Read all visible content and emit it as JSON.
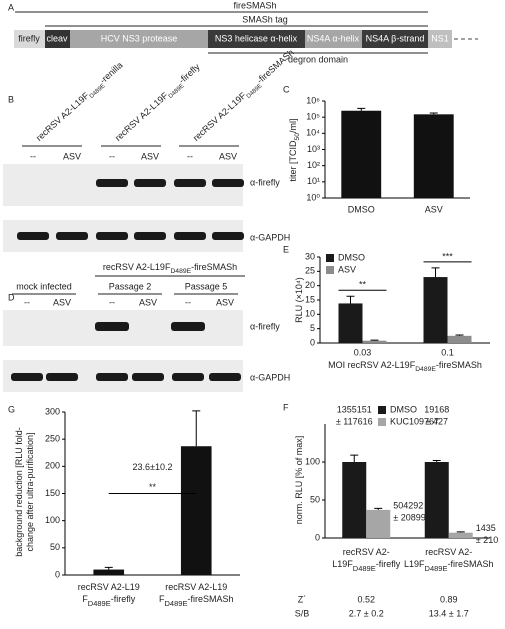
{
  "panel_labels": [
    "A",
    "B",
    "C",
    "D",
    "E",
    "F",
    "G"
  ],
  "construct": {
    "fire_label": "fireSMASh",
    "tag_label": "SMASh tag",
    "segments": [
      "firefly",
      "cleav",
      "HCV NS3 protease",
      "NS3 helicase α-helix",
      "NS4A α-helix",
      "NS4A β-strand",
      "NS1"
    ],
    "degron_label": "degron domain"
  },
  "blot_b": {
    "lanes": [
      [
        [
          "recRSV A2-L19F",
          "D489E",
          "-renilla"
        ]
      ],
      [
        [
          "recRSV A2-L19F",
          "D489E",
          "-firefly"
        ]
      ],
      [
        [
          "recRSV A2-L19F",
          "D489E",
          "-fireSMASh"
        ]
      ]
    ],
    "conditions": [
      "--",
      "ASV",
      "--",
      "ASV",
      "--",
      "ASV"
    ],
    "antibodies": [
      "α-firefly",
      "α-GAPDH"
    ]
  },
  "blot_d": {
    "group_header": [
      [
        "recRSV A2-L19F",
        "D489E",
        "-fireSMASh"
      ]
    ],
    "groups": [
      "mock infected",
      "Passage 2",
      "Passage 5"
    ],
    "conditions": [
      "--",
      "ASV",
      "--",
      "ASV",
      "--",
      "ASV"
    ],
    "antibodies": [
      "α-firefly",
      "α-GAPDH"
    ]
  },
  "chart_data": [
    {
      "type": "bar",
      "categories": [
        "DMSO",
        "ASV"
      ],
      "values": [
        250000,
        150000
      ],
      "errors": [
        100000,
        30000
      ],
      "color": "#111111",
      "y_label": [
        [
          "titer [TCID",
          "50",
          "/ml]"
        ]
      ],
      "log_scale": true,
      "ylim": [
        1,
        1000000
      ],
      "yticks": [
        {
          "value": 1,
          "label": "10⁰"
        },
        {
          "value": 10,
          "label": "10¹"
        },
        {
          "value": 100,
          "label": "10²"
        },
        {
          "value": 1000,
          "label": "10³"
        },
        {
          "value": 10000,
          "label": "10⁴"
        },
        {
          "value": 100000,
          "label": "10⁵"
        },
        {
          "value": 1000000,
          "label": "10⁶"
        }
      ]
    },
    {
      "type": "grouped_bar",
      "categories": [
        "0.03",
        "0.1"
      ],
      "series": [
        {
          "name": "DMSO",
          "color": "#1a1a1a",
          "values": [
            13.8,
            23
          ],
          "errors": [
            2.5,
            3.2
          ]
        },
        {
          "name": "ASV",
          "color": "#8c8c8c",
          "values": [
            0.8,
            2.5
          ],
          "errors": [
            0.2,
            0.3
          ]
        }
      ],
      "significance": [
        "**",
        "***"
      ],
      "x_label": [
        [
          "MOI recRSV A2-L19F",
          "D489E",
          "-fireSMASh"
        ]
      ],
      "y_label": [
        [
          "RLU (×10⁴)"
        ]
      ],
      "ylim": [
        0,
        30
      ],
      "yticks": [
        0,
        5,
        10,
        15,
        20,
        25,
        30
      ]
    },
    {
      "type": "grouped_bar",
      "categories": [
        [
          [
            "recRSV A2-"
          ],
          [
            "L19F",
            "D489E",
            "-firefly"
          ]
        ],
        [
          [
            "recRSV A2-"
          ],
          [
            "L19F",
            "D489E",
            "-fireSMASh"
          ]
        ]
      ],
      "series": [
        {
          "name": "DMSO",
          "color": "#1a1a1a",
          "values": [
            100,
            100
          ],
          "errors": [
            9,
            2
          ],
          "annotations": [
            [
              "1355151",
              "± 117616"
            ],
            [
              "19168",
              "± 427"
            ]
          ]
        },
        {
          "name": "KUC109767",
          "color": "#a6a6a6",
          "values": [
            37,
            7
          ],
          "errors": [
            2,
            1
          ],
          "annotations": [
            [
              "504292",
              "± 20899"
            ],
            [
              "1435",
              "± 210"
            ]
          ]
        }
      ],
      "y_label": [
        [
          "norm. RLU [% of max]"
        ]
      ],
      "ylim": [
        0,
        150
      ],
      "yticks": [
        0,
        50,
        100
      ],
      "stats": [
        {
          "name": "Z´",
          "values": [
            0.52,
            0.89
          ]
        },
        {
          "name": "S/B",
          "values": [
            "2.7 ± 0.2",
            "13.4 ± 1.7"
          ]
        }
      ]
    },
    {
      "type": "bar",
      "categories": [
        [
          [
            "recRSV A2-L19"
          ],
          [
            "F",
            "D489E",
            "-firefly"
          ]
        ],
        [
          [
            "recRSV A2-L19"
          ],
          [
            "F",
            "D489E",
            "-fireSMASh"
          ]
        ]
      ],
      "values": [
        10,
        237
      ],
      "errors": [
        4,
        65
      ],
      "color": "#111111",
      "y_label": [
        [
          "background reduction [RLU fold-"
        ],
        [
          "change after ultra-purification]"
        ]
      ],
      "significance": "**",
      "annotation": "23.6±10.2",
      "ylim": [
        0,
        300
      ],
      "yticks": [
        0,
        50,
        100,
        150,
        200,
        250,
        300
      ]
    }
  ]
}
